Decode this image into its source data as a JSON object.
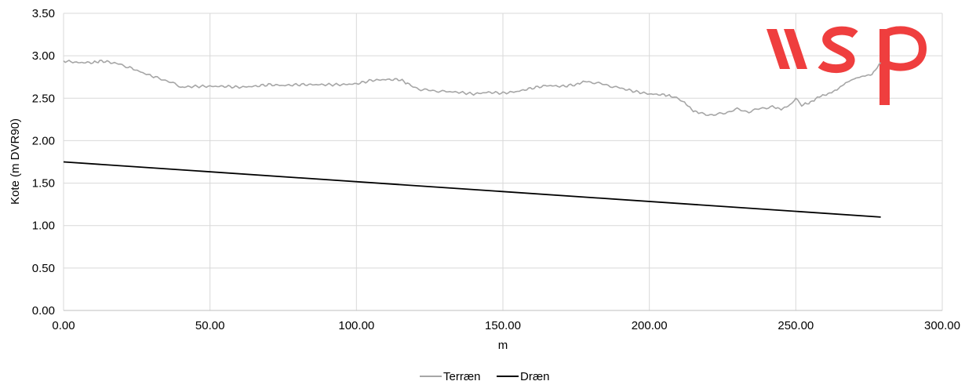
{
  "chart_data": {
    "type": "line",
    "title": "",
    "xlabel": "m",
    "ylabel": "Kote (m DVR90)",
    "xlim": [
      0,
      300
    ],
    "ylim": [
      0,
      3.5
    ],
    "x_ticks": [
      0,
      50,
      100,
      150,
      200,
      250,
      300
    ],
    "y_ticks": [
      0,
      0.5,
      1.0,
      1.5,
      2.0,
      2.5,
      3.0,
      3.5
    ],
    "x_tick_labels": [
      "0.00",
      "50.00",
      "100.00",
      "150.00",
      "200.00",
      "250.00",
      "300.00"
    ],
    "y_tick_labels": [
      "0.00",
      "0.50",
      "1.00",
      "1.50",
      "2.00",
      "2.50",
      "3.00",
      "3.50"
    ],
    "grid": true,
    "legend_position": "bottom-center",
    "series": [
      {
        "name": "Terræn",
        "color": "#a6a6a6",
        "x": [
          0,
          5,
          10,
          13,
          18,
          22,
          27,
          32,
          36,
          40,
          45,
          50,
          55,
          60,
          65,
          70,
          75,
          80,
          85,
          90,
          95,
          100,
          105,
          110,
          115,
          118,
          122,
          126,
          130,
          135,
          140,
          145,
          150,
          155,
          160,
          165,
          170,
          175,
          178,
          182,
          186,
          190,
          195,
          200,
          205,
          208,
          212,
          215,
          218,
          222,
          226,
          230,
          234,
          238,
          242,
          245,
          248,
          250,
          252,
          255,
          258,
          261,
          264,
          267,
          270,
          273,
          276,
          279
        ],
        "y": [
          2.94,
          2.92,
          2.92,
          2.94,
          2.91,
          2.87,
          2.8,
          2.74,
          2.7,
          2.63,
          2.64,
          2.64,
          2.64,
          2.63,
          2.64,
          2.66,
          2.65,
          2.66,
          2.66,
          2.66,
          2.66,
          2.67,
          2.71,
          2.72,
          2.72,
          2.66,
          2.6,
          2.59,
          2.58,
          2.57,
          2.55,
          2.57,
          2.56,
          2.58,
          2.62,
          2.65,
          2.64,
          2.66,
          2.7,
          2.68,
          2.65,
          2.62,
          2.58,
          2.55,
          2.54,
          2.52,
          2.45,
          2.35,
          2.32,
          2.3,
          2.33,
          2.37,
          2.34,
          2.38,
          2.4,
          2.37,
          2.42,
          2.49,
          2.42,
          2.45,
          2.52,
          2.55,
          2.6,
          2.68,
          2.73,
          2.76,
          2.78,
          2.92
        ]
      },
      {
        "name": "Dræn",
        "color": "#000000",
        "x": [
          0,
          279
        ],
        "y": [
          1.75,
          1.1
        ]
      }
    ]
  },
  "watermark": {
    "text": "wsp",
    "color": "#ef3e3e"
  }
}
